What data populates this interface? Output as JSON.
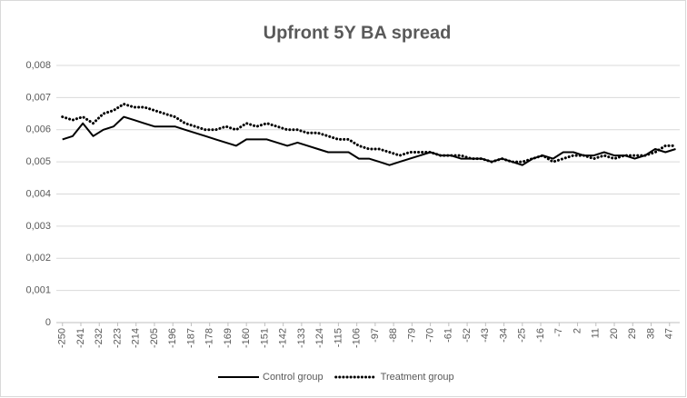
{
  "chart_data": {
    "type": "line",
    "title": "Upfront 5Y BA spread",
    "x": [
      -250,
      -245,
      -240,
      -235,
      -230,
      -225,
      -220,
      -215,
      -210,
      -205,
      -200,
      -195,
      -190,
      -185,
      -180,
      -175,
      -170,
      -165,
      -160,
      -155,
      -150,
      -145,
      -140,
      -135,
      -130,
      -125,
      -120,
      -115,
      -110,
      -105,
      -100,
      -95,
      -90,
      -85,
      -80,
      -75,
      -70,
      -65,
      -60,
      -55,
      -50,
      -45,
      -40,
      -35,
      -30,
      -25,
      -20,
      -15,
      -10,
      -5,
      0,
      5,
      10,
      15,
      20,
      25,
      30,
      35,
      40,
      45,
      50
    ],
    "series": [
      {
        "name": "Control group",
        "color": "#000000",
        "dash": false,
        "values": [
          0.0057,
          0.0058,
          0.0062,
          0.0058,
          0.006,
          0.0061,
          0.0064,
          0.0063,
          0.0062,
          0.0061,
          0.0061,
          0.0061,
          0.006,
          0.0059,
          0.0058,
          0.0057,
          0.0056,
          0.0055,
          0.0057,
          0.0057,
          0.0057,
          0.0056,
          0.0055,
          0.0056,
          0.0055,
          0.0054,
          0.0053,
          0.0053,
          0.0053,
          0.0051,
          0.0051,
          0.005,
          0.0049,
          0.005,
          0.0051,
          0.0052,
          0.0053,
          0.0052,
          0.0052,
          0.0051,
          0.0051,
          0.0051,
          0.005,
          0.0051,
          0.005,
          0.0049,
          0.0051,
          0.0052,
          0.0051,
          0.0053,
          0.0053,
          0.0052,
          0.0052,
          0.0053,
          0.0052,
          0.0052,
          0.0051,
          0.0052,
          0.0054,
          0.0053,
          0.0054
        ]
      },
      {
        "name": "Treatment group",
        "color": "#000000",
        "dash": true,
        "values": [
          0.0064,
          0.0063,
          0.0064,
          0.0062,
          0.0065,
          0.0066,
          0.0068,
          0.0067,
          0.0067,
          0.0066,
          0.0065,
          0.0064,
          0.0062,
          0.0061,
          0.006,
          0.006,
          0.0061,
          0.006,
          0.0062,
          0.0061,
          0.0062,
          0.0061,
          0.006,
          0.006,
          0.0059,
          0.0059,
          0.0058,
          0.0057,
          0.0057,
          0.0055,
          0.0054,
          0.0054,
          0.0053,
          0.0052,
          0.0053,
          0.0053,
          0.0053,
          0.0052,
          0.0052,
          0.0052,
          0.0051,
          0.0051,
          0.005,
          0.0051,
          0.005,
          0.005,
          0.0051,
          0.0052,
          0.005,
          0.0051,
          0.0052,
          0.0052,
          0.0051,
          0.0052,
          0.0051,
          0.0052,
          0.0052,
          0.0052,
          0.0053,
          0.0055,
          0.0055
        ]
      }
    ],
    "xlim": [
      -253,
      52
    ],
    "xticks": [
      -250,
      -241,
      -232,
      -223,
      -214,
      -205,
      -196,
      -187,
      -178,
      -169,
      -160,
      -151,
      -142,
      -133,
      -124,
      -115,
      -106,
      -97,
      -88,
      -79,
      -70,
      -61,
      -52,
      -43,
      -34,
      -25,
      -16,
      -7,
      2,
      11,
      20,
      29,
      38,
      47
    ],
    "ylim": [
      0,
      0.008
    ],
    "yticks": [
      0,
      {
        "value": 0.001,
        "label": "0,001"
      },
      {
        "value": 0.002,
        "label": "0,002"
      },
      {
        "value": 0.003,
        "label": "0,003"
      },
      {
        "value": 0.004,
        "label": "0,004"
      },
      {
        "value": 0.005,
        "label": "0,005"
      },
      {
        "value": 0.006,
        "label": "0,006"
      },
      {
        "value": 0.007,
        "label": "0,007"
      },
      {
        "value": 0.008,
        "label": "0,008"
      }
    ],
    "grid": true,
    "legend": "bottom"
  }
}
